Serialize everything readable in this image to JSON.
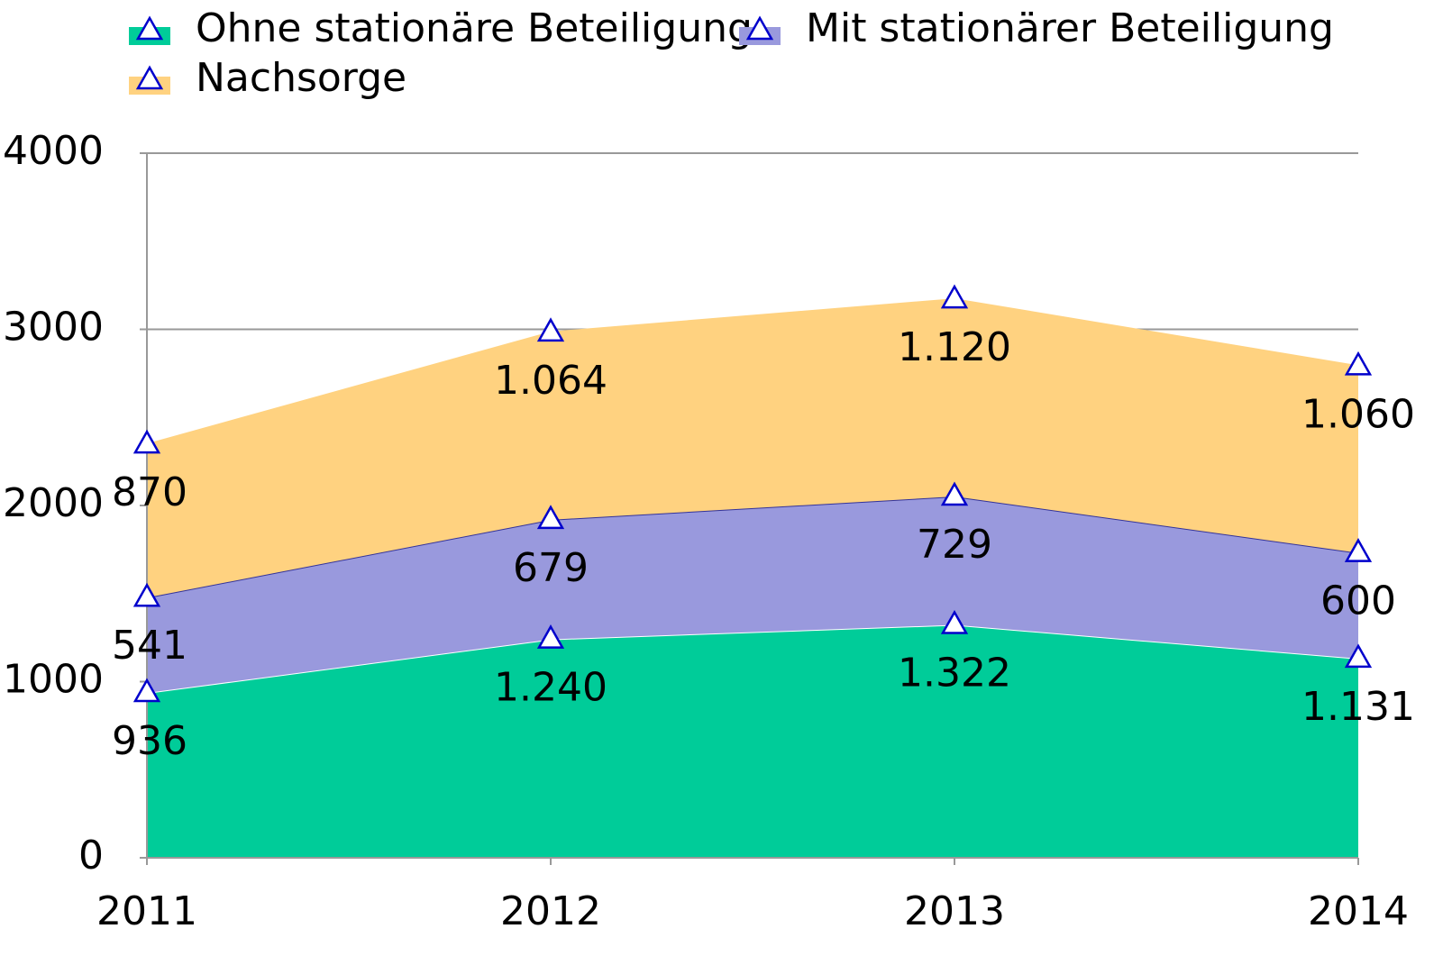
{
  "chart_data": {
    "type": "stacked_area",
    "categories": [
      "2011",
      "2012",
      "2013",
      "2014"
    ],
    "series": [
      {
        "name": "Ohne stationäre Beteiligung",
        "color": "#00cc99",
        "line_color": "#ffffff",
        "values": [
          936,
          1240,
          1322,
          1131
        ],
        "value_labels": [
          "936",
          "1.240",
          "1.322",
          "1.131"
        ]
      },
      {
        "name": "Mit stationärer Beteiligung",
        "color": "#9999dd",
        "line_color": "#333399",
        "values": [
          541,
          679,
          729,
          600
        ],
        "value_labels": [
          "541",
          "679",
          "729",
          "600"
        ]
      },
      {
        "name": "Nachsorge",
        "color": "#ffd280",
        "line_color": "#ffd280",
        "values": [
          870,
          1064,
          1120,
          1060
        ],
        "value_labels": [
          "870",
          "1.064",
          "1.120",
          "1.060"
        ]
      }
    ],
    "marker_color": "#0000cc",
    "ylim": [
      0,
      4000
    ],
    "yticks": [
      0,
      1000,
      2000,
      3000,
      4000
    ],
    "grid": true
  }
}
